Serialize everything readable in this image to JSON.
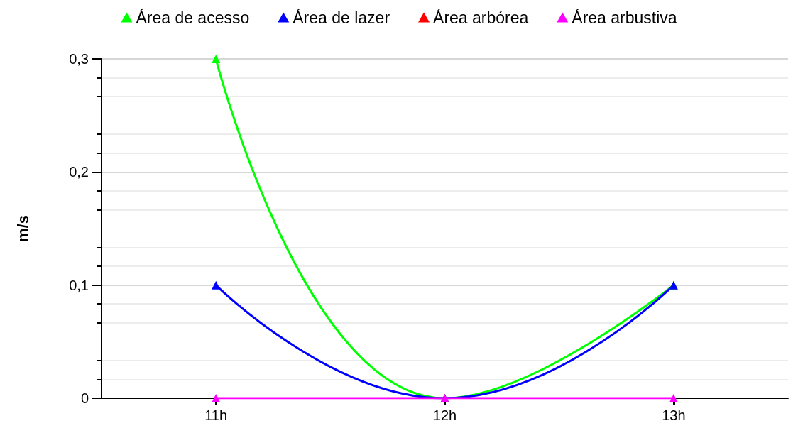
{
  "chart_data": {
    "type": "line",
    "ylabel": "m/s",
    "categories": [
      "11h",
      "12h",
      "13h"
    ],
    "series": [
      {
        "name": "Área de acesso",
        "color": "#00ff00",
        "values": [
          0.3,
          0,
          0.1
        ]
      },
      {
        "name": "Área de lazer",
        "color": "#0000ff",
        "values": [
          0.1,
          0,
          0.1
        ]
      },
      {
        "name": "Área arbórea",
        "color": "#ff0000",
        "values": [
          null,
          null,
          null
        ]
      },
      {
        "name": "Área arbustiva",
        "color": "#ff00ff",
        "values": [
          0,
          0,
          0
        ]
      }
    ],
    "ylim": [
      0,
      0.3
    ],
    "yticks": [
      {
        "value": 0,
        "label": "0"
      },
      {
        "value": 0.1,
        "label": "0,1"
      },
      {
        "value": 0.2,
        "label": "0,2"
      },
      {
        "value": 0.3,
        "label": "0,3"
      }
    ],
    "grid": "y",
    "legend": "top",
    "marker": "triangle",
    "line_style": "solid"
  }
}
